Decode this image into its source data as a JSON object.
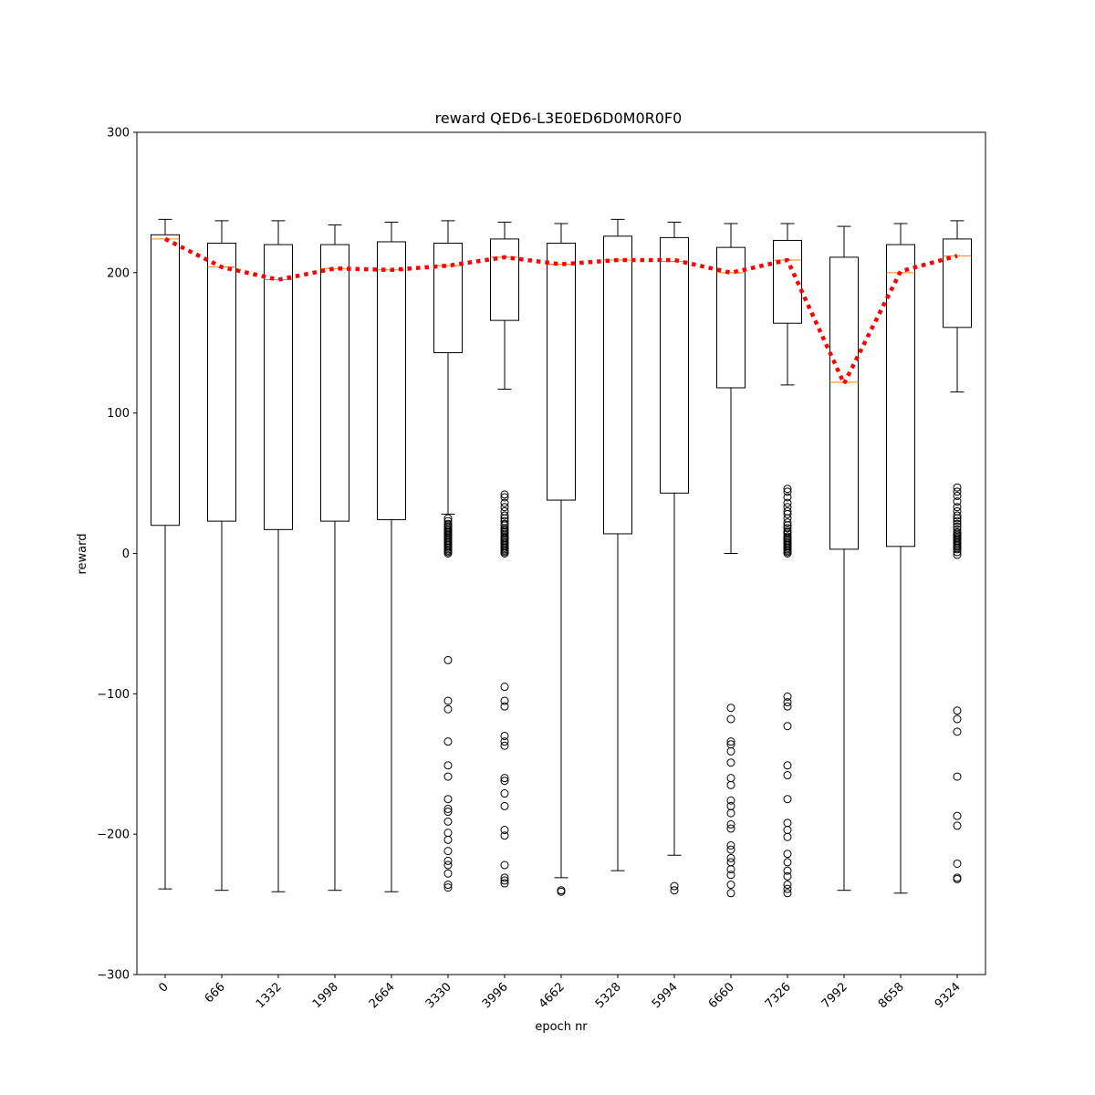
{
  "chart_data": {
    "type": "boxplot",
    "title": "reward QED6-L3E0ED6D0M0R0F0",
    "xlabel": "epoch nr",
    "ylabel": "reward",
    "ylim": [
      -300,
      300
    ],
    "yticks": [
      -300,
      -200,
      -100,
      0,
      100,
      200,
      300
    ],
    "categories": [
      "0",
      "666",
      "1332",
      "1998",
      "2664",
      "3330",
      "3996",
      "4662",
      "5328",
      "5994",
      "6660",
      "7326",
      "7992",
      "8658",
      "9324"
    ],
    "boxes": [
      {
        "whisker_low": -239,
        "q1": 20,
        "median": 224,
        "q3": 227,
        "whisker_high": 238,
        "outliers": []
      },
      {
        "whisker_low": -240,
        "q1": 23,
        "median": 204,
        "q3": 221,
        "whisker_high": 237,
        "outliers": []
      },
      {
        "whisker_low": -241,
        "q1": 17,
        "median": 195,
        "q3": 220,
        "whisker_high": 237,
        "outliers": []
      },
      {
        "whisker_low": -240,
        "q1": 23,
        "median": 203,
        "q3": 220,
        "whisker_high": 234,
        "outliers": []
      },
      {
        "whisker_low": -241,
        "q1": 24,
        "median": 202,
        "q3": 222,
        "whisker_high": 236,
        "outliers": []
      },
      {
        "whisker_low": 28,
        "q1": 143,
        "median": 205,
        "q3": 221,
        "whisker_high": 237,
        "outliers": [
          25,
          23,
          21,
          20,
          19,
          18,
          17,
          16,
          15,
          14,
          13,
          12,
          11,
          10,
          9,
          8,
          7,
          6,
          5,
          4,
          3,
          2,
          1,
          0,
          -76,
          -105,
          -111,
          -134,
          -151,
          -159,
          -175,
          -182,
          -184,
          -191,
          -199,
          -204,
          -212,
          -219,
          -222,
          -228,
          -236,
          -238
        ]
      },
      {
        "whisker_low": 117,
        "q1": 166,
        "median": 211,
        "q3": 224,
        "whisker_high": 236,
        "outliers": [
          42,
          40,
          36,
          33,
          30,
          27,
          25,
          23,
          21,
          20,
          18,
          17,
          16,
          15,
          14,
          12,
          11,
          10,
          9,
          8,
          7,
          6,
          5,
          4,
          3,
          2,
          1,
          0,
          -95,
          -105,
          -109,
          -130,
          -134,
          -137,
          -160,
          -162,
          -171,
          -180,
          -197,
          -201,
          -222,
          -231,
          -233,
          -235
        ]
      },
      {
        "whisker_low": -231,
        "q1": 38,
        "median": 206,
        "q3": 221,
        "whisker_high": 235,
        "outliers": [
          -240,
          -241
        ]
      },
      {
        "whisker_low": -226,
        "q1": 14,
        "median": 209,
        "q3": 226,
        "whisker_high": 238,
        "outliers": []
      },
      {
        "whisker_low": -215,
        "q1": 43,
        "median": 208,
        "q3": 225,
        "whisker_high": 236,
        "outliers": [
          -237,
          -240
        ]
      },
      {
        "whisker_low": 0,
        "q1": 118,
        "median": 200,
        "q3": 218,
        "whisker_high": 235,
        "outliers": [
          -110,
          -118,
          -134,
          -136,
          -141,
          -149,
          -160,
          -165,
          -176,
          -180,
          -185,
          -193,
          -196,
          -208,
          -211,
          -217,
          -220,
          -225,
          -229,
          -236,
          -242
        ]
      },
      {
        "whisker_low": 120,
        "q1": 164,
        "median": 209,
        "q3": 223,
        "whisker_high": 235,
        "outliers": [
          46,
          44,
          40,
          36,
          33,
          30,
          28,
          25,
          22,
          20,
          18,
          16,
          15,
          14,
          12,
          11,
          10,
          9,
          8,
          7,
          6,
          5,
          4,
          3,
          2,
          1,
          0,
          -102,
          -106,
          -109,
          -123,
          -151,
          -158,
          -175,
          -192,
          -197,
          -202,
          -214,
          -220,
          -226,
          -230,
          -236,
          -239,
          -242
        ]
      },
      {
        "whisker_low": -240,
        "q1": 3,
        "median": 122,
        "q3": 211,
        "whisker_high": 233,
        "outliers": []
      },
      {
        "whisker_low": -242,
        "q1": 5,
        "median": 200,
        "q3": 220,
        "whisker_high": 235,
        "outliers": []
      },
      {
        "whisker_low": 115,
        "q1": 161,
        "median": 212,
        "q3": 224,
        "whisker_high": 237,
        "outliers": [
          47,
          44,
          41,
          37,
          33,
          30,
          27,
          25,
          23,
          21,
          19,
          17,
          15,
          14,
          13,
          12,
          11,
          10,
          9,
          8,
          7,
          6,
          5,
          4,
          3,
          1,
          -1,
          -112,
          -118,
          -127,
          -159,
          -187,
          -194,
          -221,
          -231,
          -232
        ]
      }
    ],
    "mean_line": {
      "values": [
        224,
        204,
        195,
        203,
        202,
        205,
        211,
        206,
        209,
        209,
        200,
        209,
        121,
        201,
        212
      ],
      "color": "#ff0000",
      "style": "dotted"
    },
    "median_color": "#ff7f0e",
    "box_color": "#000000",
    "grid": false
  }
}
